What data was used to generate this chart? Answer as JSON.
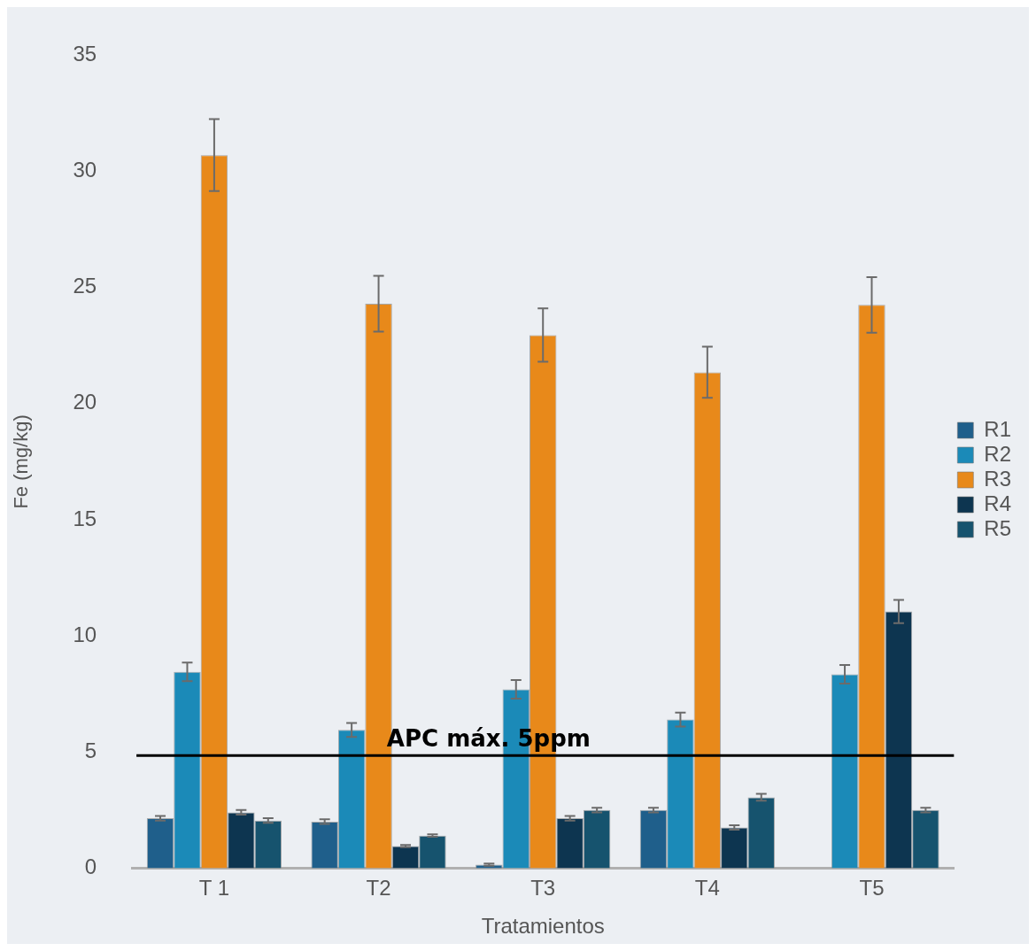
{
  "chart_data": {
    "type": "bar",
    "xlabel": "Tratamientos",
    "ylabel": "Fe (mg/kg)",
    "categories": [
      "T 1",
      "T2",
      "T3",
      "T4",
      "T5"
    ],
    "series": [
      {
        "name": "R1",
        "color": "#1f5f8b",
        "values": [
          2.15,
          2.0,
          0.15,
          2.5,
          null
        ],
        "errors": [
          0.1,
          0.1,
          0.05,
          0.1,
          null
        ]
      },
      {
        "name": "R2",
        "color": "#1b8ab8",
        "values": [
          8.45,
          5.95,
          7.7,
          6.4,
          8.35
        ],
        "errors": [
          0.4,
          0.3,
          0.4,
          0.3,
          0.4
        ]
      },
      {
        "name": "R3",
        "color": "#e8891a",
        "values": [
          30.7,
          24.3,
          22.95,
          21.35,
          24.25
        ],
        "errors": [
          1.55,
          1.2,
          1.15,
          1.1,
          1.2
        ]
      },
      {
        "name": "R4",
        "color": "#0d3550",
        "values": [
          2.4,
          0.95,
          2.15,
          1.75,
          11.05
        ],
        "errors": [
          0.1,
          0.05,
          0.1,
          0.1,
          0.5
        ]
      },
      {
        "name": "R5",
        "color": "#16536e",
        "values": [
          2.05,
          1.4,
          2.5,
          3.05,
          2.5
        ],
        "errors": [
          0.1,
          0.05,
          0.1,
          0.15,
          0.1
        ]
      }
    ],
    "ylim": [
      0,
      35
    ],
    "yticks": [
      0,
      5,
      10,
      15,
      20,
      25,
      30,
      35
    ],
    "grid": false,
    "legend": "right",
    "ref_lines": [
      {
        "axis": "y",
        "value": 4.85,
        "label": "APC máx. 5ppm",
        "color": "#000000"
      }
    ]
  }
}
